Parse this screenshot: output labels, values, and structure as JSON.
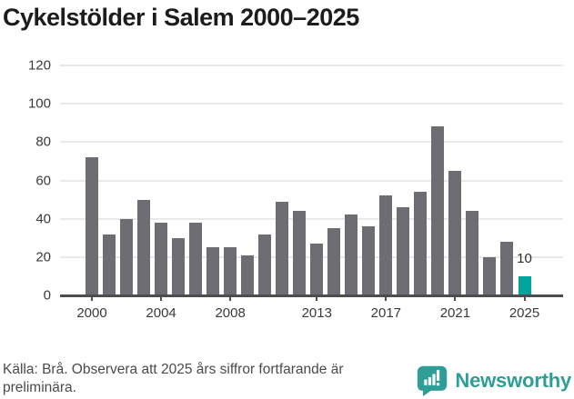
{
  "title": "Cykelstölder i Salem 2000–2025",
  "chart_data": {
    "type": "bar",
    "title": "Cykelstölder i Salem 2000–2025",
    "x": [
      2000,
      2001,
      2002,
      2003,
      2004,
      2005,
      2006,
      2007,
      2008,
      2009,
      2010,
      2011,
      2012,
      2013,
      2014,
      2015,
      2016,
      2017,
      2018,
      2019,
      2020,
      2021,
      2022,
      2023,
      2024,
      2025
    ],
    "values": [
      72,
      32,
      40,
      50,
      38,
      30,
      38,
      25,
      25,
      21,
      32,
      49,
      44,
      27,
      35,
      42,
      36,
      52,
      46,
      54,
      88,
      65,
      44,
      20,
      28,
      10
    ],
    "x_tick_labels": [
      "2000",
      "2004",
      "2008",
      "2013",
      "2017",
      "2021",
      "2025"
    ],
    "y_ticks": [
      0,
      20,
      40,
      60,
      80,
      100,
      120
    ],
    "ylim": [
      0,
      120
    ],
    "grid": "horizontal",
    "legend": "none",
    "bar_color": "#6d6d73",
    "highlight": {
      "year": 2025,
      "value": 10,
      "label": "10",
      "color": "#00a49a"
    }
  },
  "colors": {
    "bar": "#6d6d73",
    "highlight": "#00a49a",
    "gridline": "#e9e9e9",
    "axis": "#4d4d4d",
    "brand_teal": "#2f9e98"
  },
  "footer": {
    "source_line1": "Källa: Brå. Observera att 2025 års siffror fortfarande är",
    "source_line2": "preliminära.",
    "brand": "Newsworthy"
  }
}
